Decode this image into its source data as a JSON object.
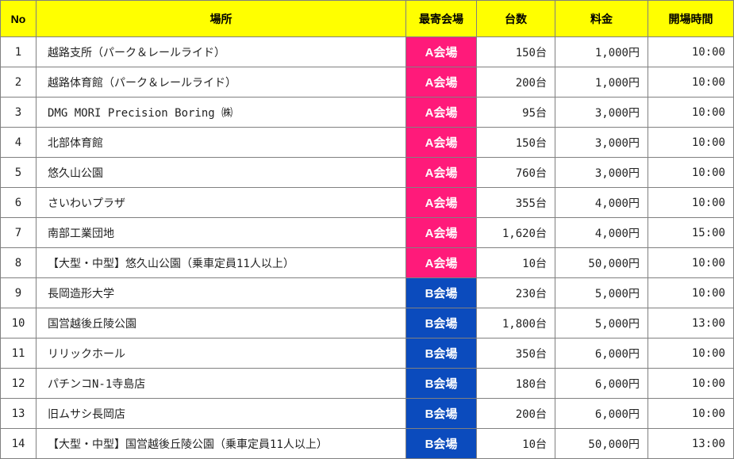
{
  "colors": {
    "header_bg": "#ffff00",
    "venue_A": "#ff1a7a",
    "venue_B": "#0b4bbd",
    "border": "#808080"
  },
  "headers": {
    "no": "No",
    "place": "場所",
    "venue": "最寄会場",
    "count": "台数",
    "fee": "料金",
    "open": "開場時間"
  },
  "rows": [
    {
      "no": "1",
      "place": "越路支所（パーク＆レールライド）",
      "venue": "A会場",
      "venue_group": "A",
      "count": "150台",
      "fee": "1,000円",
      "open": "10:00"
    },
    {
      "no": "2",
      "place": "越路体育館（パーク＆レールライド）",
      "venue": "A会場",
      "venue_group": "A",
      "count": "200台",
      "fee": "1,000円",
      "open": "10:00"
    },
    {
      "no": "3",
      "place": "DMG MORI Precision Boring ㈱",
      "venue": "A会場",
      "venue_group": "A",
      "count": "95台",
      "fee": "3,000円",
      "open": "10:00"
    },
    {
      "no": "4",
      "place": "北部体育館",
      "venue": "A会場",
      "venue_group": "A",
      "count": "150台",
      "fee": "3,000円",
      "open": "10:00"
    },
    {
      "no": "5",
      "place": "悠久山公園",
      "venue": "A会場",
      "venue_group": "A",
      "count": "760台",
      "fee": "3,000円",
      "open": "10:00"
    },
    {
      "no": "6",
      "place": "さいわいプラザ",
      "venue": "A会場",
      "venue_group": "A",
      "count": "355台",
      "fee": "4,000円",
      "open": "10:00"
    },
    {
      "no": "7",
      "place": "南部工業団地",
      "venue": "A会場",
      "venue_group": "A",
      "count": "1,620台",
      "fee": "4,000円",
      "open": "15:00"
    },
    {
      "no": "8",
      "place": "【大型・中型】悠久山公園（乗車定員11人以上）",
      "venue": "A会場",
      "venue_group": "A",
      "count": "10台",
      "fee": "50,000円",
      "open": "10:00"
    },
    {
      "no": "9",
      "place": "長岡造形大学",
      "venue": "B会場",
      "venue_group": "B",
      "count": "230台",
      "fee": "5,000円",
      "open": "10:00"
    },
    {
      "no": "10",
      "place": "国営越後丘陵公園",
      "venue": "B会場",
      "venue_group": "B",
      "count": "1,800台",
      "fee": "5,000円",
      "open": "13:00"
    },
    {
      "no": "11",
      "place": "リリックホール",
      "venue": "B会場",
      "venue_group": "B",
      "count": "350台",
      "fee": "6,000円",
      "open": "10:00"
    },
    {
      "no": "12",
      "place": "パチンコN-1寺島店",
      "venue": "B会場",
      "venue_group": "B",
      "count": "180台",
      "fee": "6,000円",
      "open": "10:00"
    },
    {
      "no": "13",
      "place": "旧ムサシ長岡店",
      "venue": "B会場",
      "venue_group": "B",
      "count": "200台",
      "fee": "6,000円",
      "open": "10:00"
    },
    {
      "no": "14",
      "place": "【大型・中型】国営越後丘陵公園（乗車定員11人以上）",
      "venue": "B会場",
      "venue_group": "B",
      "count": "10台",
      "fee": "50,000円",
      "open": "13:00"
    }
  ]
}
